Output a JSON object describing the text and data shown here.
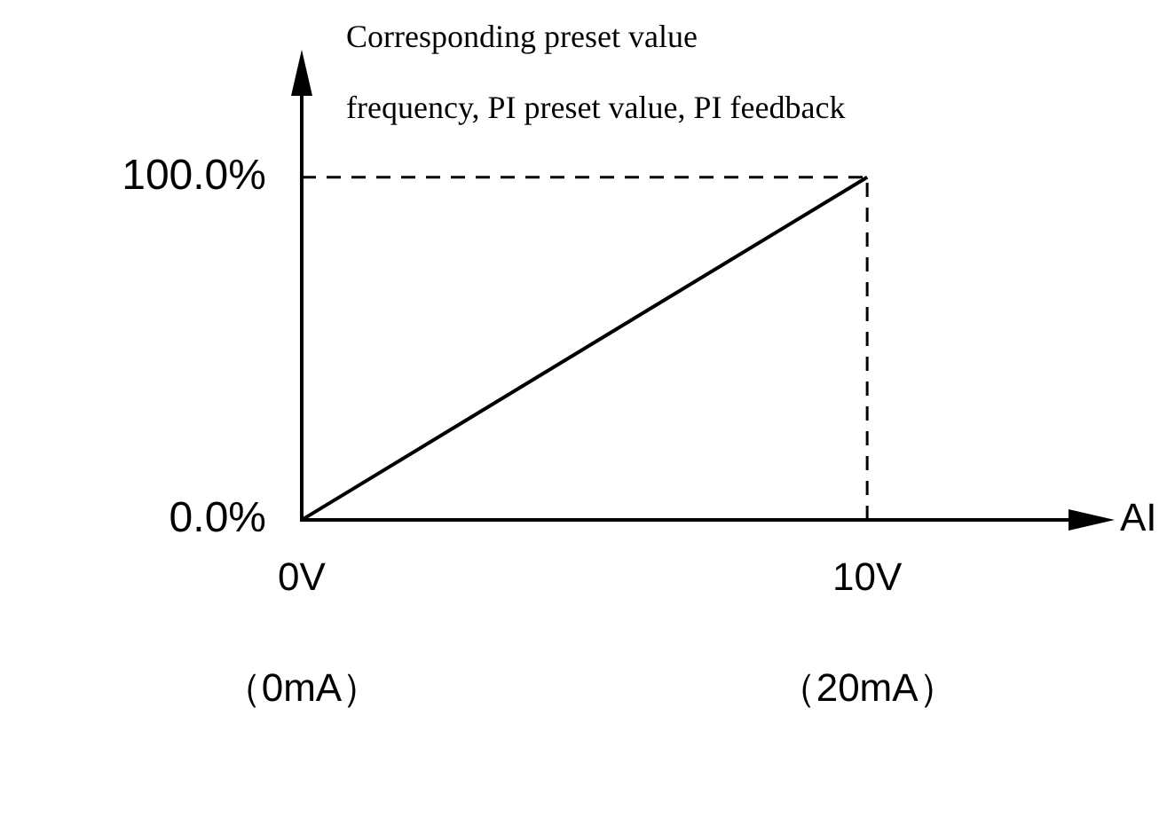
{
  "chart_data": {
    "type": "line",
    "title": "Corresponding preset value",
    "subtitle": "frequency, PI preset value, PI feedback",
    "xlabel": "AI",
    "x": [
      0,
      10
    ],
    "series": [
      {
        "color": "#000000",
        "values": [
          0,
          100
        ]
      }
    ],
    "xlim": [
      0,
      14
    ],
    "ylim": [
      0,
      131
    ],
    "xticks": [
      {
        "value": 0,
        "label": "0V"
      },
      {
        "value": 10,
        "label": "10V"
      }
    ],
    "annotations": [
      "（0mA）",
      "（20mA）"
    ],
    "yticks": [
      {
        "value": 0,
        "label": "0.0%"
      },
      {
        "value": 100,
        "label": "100.0%"
      }
    ],
    "ref_lines": [
      {
        "axis": "x",
        "value": 10,
        "line_style": "dashed",
        "color": "#000000"
      },
      {
        "axis": "y",
        "value": 100,
        "line_style": "dashed",
        "color": "#000000"
      }
    ],
    "grid": false,
    "legend": false,
    "marker": "none",
    "line_style": "solid"
  }
}
